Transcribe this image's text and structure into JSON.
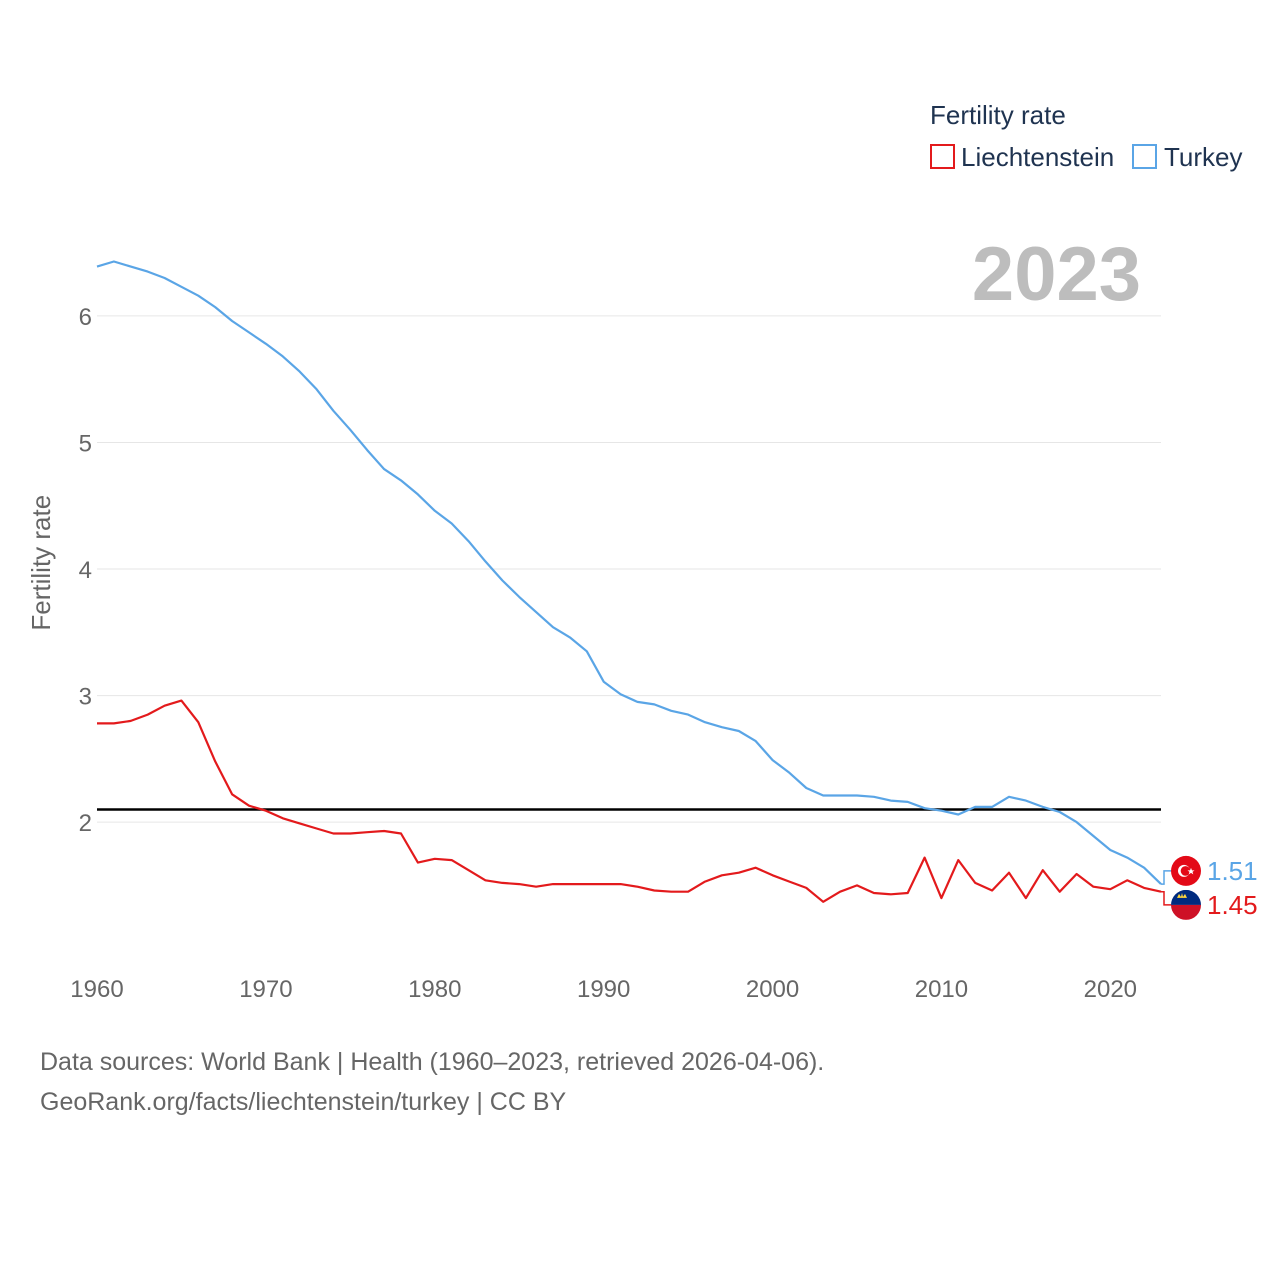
{
  "chart_data": {
    "type": "line",
    "xlabel": "",
    "ylabel": "Fertility rate",
    "xlim": [
      1960,
      2023
    ],
    "ylim": [
      0.95,
      6.6
    ],
    "xticks": [
      1960,
      1970,
      1980,
      1990,
      2000,
      2010,
      2020
    ],
    "yticks": [
      2,
      3,
      4,
      5,
      6
    ],
    "year_label": "2023",
    "legend": {
      "title": "Fertility rate",
      "position": "top-right"
    },
    "reference_line": {
      "y": 2.1,
      "color": "#000000"
    },
    "x": [
      1960,
      1961,
      1962,
      1963,
      1964,
      1965,
      1966,
      1967,
      1968,
      1969,
      1970,
      1971,
      1972,
      1973,
      1974,
      1975,
      1976,
      1977,
      1978,
      1979,
      1980,
      1981,
      1982,
      1983,
      1984,
      1985,
      1986,
      1987,
      1988,
      1989,
      1990,
      1991,
      1992,
      1993,
      1994,
      1995,
      1996,
      1997,
      1998,
      1999,
      2000,
      2001,
      2002,
      2003,
      2004,
      2005,
      2006,
      2007,
      2008,
      2009,
      2010,
      2011,
      2012,
      2013,
      2014,
      2015,
      2016,
      2017,
      2018,
      2019,
      2020,
      2021,
      2022,
      2023
    ],
    "series": [
      {
        "name": "Liechtenstein",
        "color": "#e31a1c",
        "end_value": "1.45",
        "flag_icon": "liechtenstein-flag-icon",
        "values": [
          2.78,
          2.78,
          2.8,
          2.85,
          2.92,
          2.96,
          2.79,
          2.48,
          2.22,
          2.13,
          2.09,
          2.03,
          1.99,
          1.95,
          1.91,
          1.91,
          1.92,
          1.93,
          1.91,
          1.68,
          1.71,
          1.7,
          1.62,
          1.54,
          1.52,
          1.51,
          1.49,
          1.51,
          1.51,
          1.51,
          1.51,
          1.51,
          1.49,
          1.46,
          1.45,
          1.45,
          1.53,
          1.58,
          1.6,
          1.64,
          1.58,
          1.53,
          1.48,
          1.37,
          1.45,
          1.5,
          1.44,
          1.43,
          1.44,
          1.72,
          1.4,
          1.7,
          1.52,
          1.46,
          1.6,
          1.4,
          1.62,
          1.45,
          1.59,
          1.49,
          1.47,
          1.54,
          1.48,
          1.45
        ]
      },
      {
        "name": "Turkey",
        "color": "#5aa5e6",
        "end_value": "1.51",
        "flag_icon": "turkey-flag-icon",
        "values": [
          6.39,
          6.43,
          6.39,
          6.35,
          6.3,
          6.23,
          6.16,
          6.07,
          5.96,
          5.87,
          5.78,
          5.68,
          5.56,
          5.42,
          5.25,
          5.1,
          4.94,
          4.79,
          4.7,
          4.59,
          4.46,
          4.36,
          4.22,
          4.06,
          3.91,
          3.78,
          3.66,
          3.54,
          3.46,
          3.35,
          3.11,
          3.01,
          2.95,
          2.93,
          2.88,
          2.85,
          2.79,
          2.75,
          2.72,
          2.64,
          2.49,
          2.39,
          2.27,
          2.21,
          2.21,
          2.21,
          2.2,
          2.17,
          2.16,
          2.11,
          2.09,
          2.06,
          2.12,
          2.12,
          2.2,
          2.17,
          2.12,
          2.08,
          2.0,
          1.89,
          1.78,
          1.72,
          1.64,
          1.51
        ]
      }
    ]
  },
  "footer": {
    "source_line": "Data sources: World Bank | Health (1960–2023, retrieved 2026-04-06).",
    "credit_line": "GeoRank.org/facts/liechtenstein/turkey | CC BY"
  }
}
